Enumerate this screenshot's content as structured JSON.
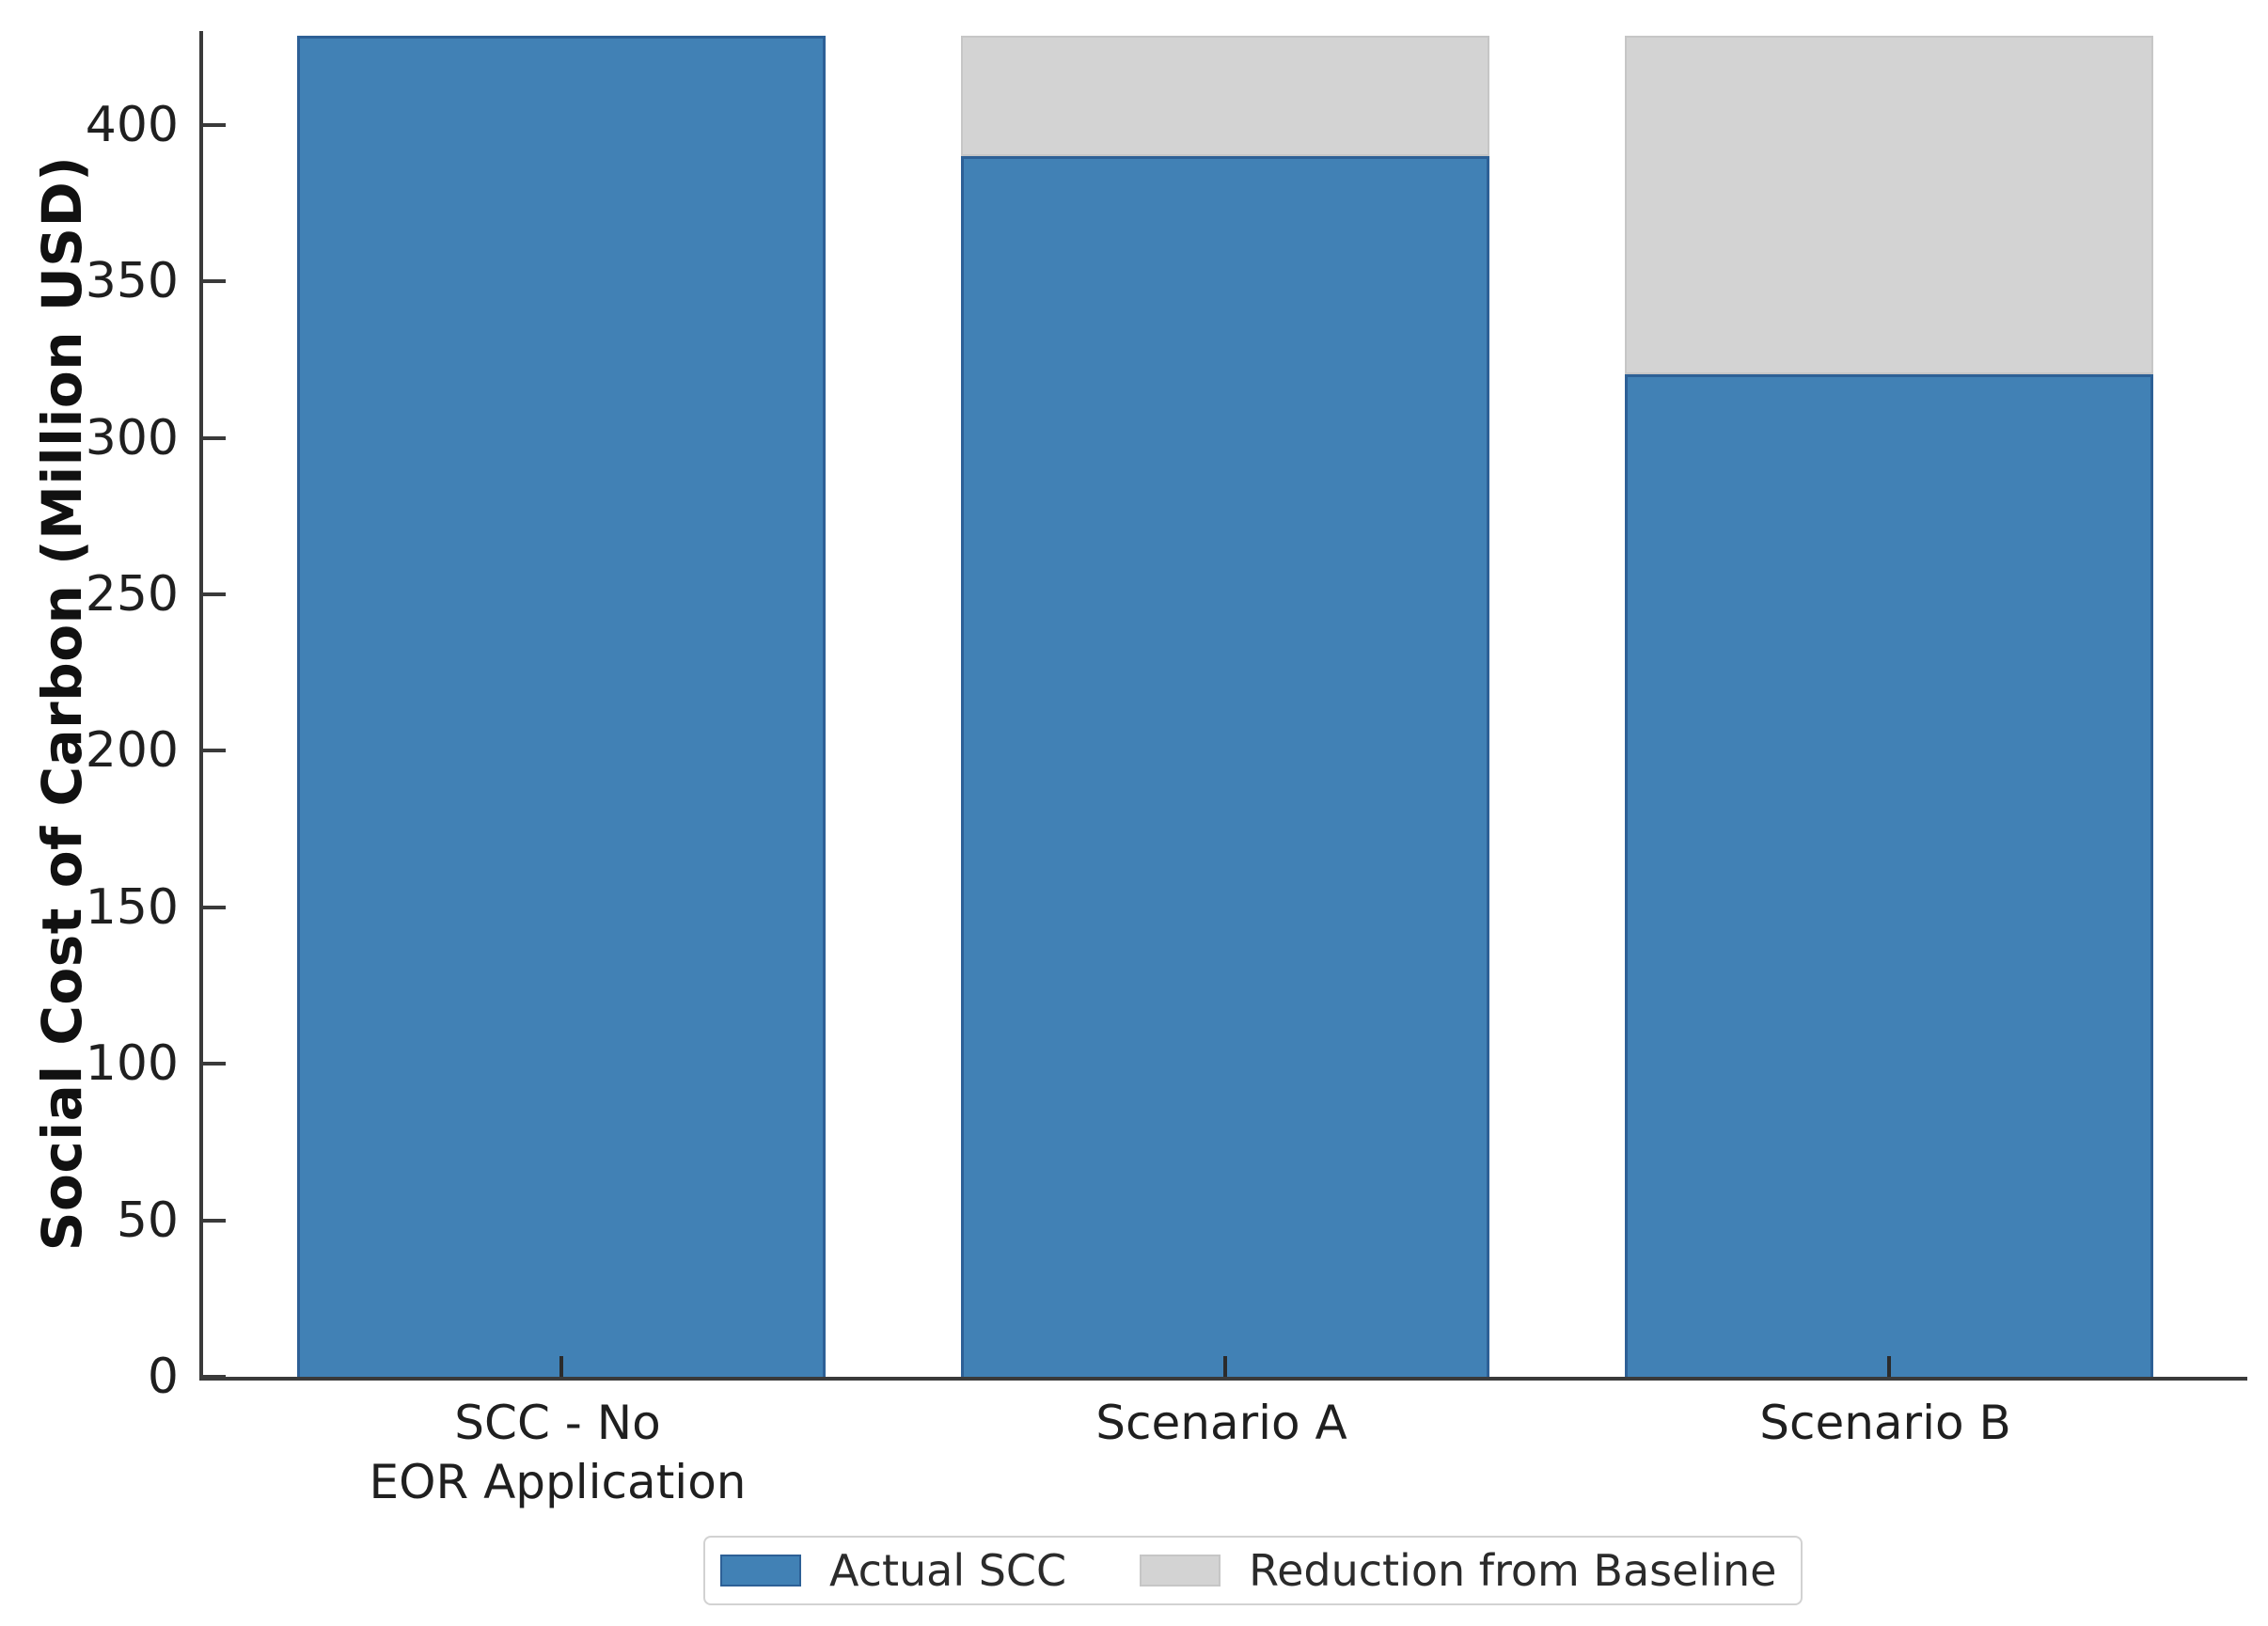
{
  "chart_data": {
    "type": "bar",
    "stacked": true,
    "title": "",
    "xlabel": "",
    "ylabel": "Social Cost of Carbon (Million USD)",
    "ylim": [
      0,
      430
    ],
    "yticks": [
      0,
      50,
      100,
      150,
      200,
      250,
      300,
      350,
      400
    ],
    "grid": false,
    "legend_position": "bottom-center",
    "categories": [
      "SCC - No EOR Application",
      "Scenario A",
      "Scenario B"
    ],
    "category_label_lines": [
      [
        "SCC - No",
        "EOR Application"
      ],
      [
        "Scenario A"
      ],
      [
        "Scenario B"
      ]
    ],
    "series": [
      {
        "name": "Actual SCC",
        "color": "#4181B5",
        "edge_color": "#2D6096",
        "values": [
          428.6,
          389.9,
          320.2
        ]
      },
      {
        "name": "Reduction from Baseline",
        "color": "#D3D3D3",
        "edge_color": "#C6C6C6",
        "values": [
          0,
          38.7,
          108.4
        ]
      }
    ],
    "baseline_total": 428.6
  },
  "colors": {
    "axis": "#3a3a3a",
    "tick_text": "#1f1f1f",
    "legend_border": "#d2d2d2",
    "background": "#ffffff"
  }
}
